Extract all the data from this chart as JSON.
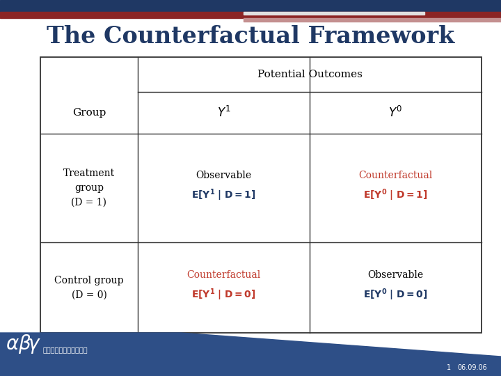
{
  "title": "The Counterfactual Framework",
  "title_color": "#1F3864",
  "title_fontsize": 24,
  "bg_color": "#FFFFFF",
  "top_bar_dark": "#1F3864",
  "top_bar_red": "#8B2020",
  "top_bar_light_red": "#C08080",
  "table": {
    "potential_outcomes_label": "Potential Outcomes",
    "group_label": "Group",
    "y1_label": "Y¹",
    "y0_label": "Y⁰",
    "rows": [
      {
        "group": "Treatment\ngroup\n(D = 1)",
        "y1_top": "Observable",
        "y1_formula": "E[Y¹ | D = 1]",
        "y1_top_color": "#000000",
        "y1_formula_color": "#1F3864",
        "y0_top": "Counterfactual",
        "y0_formula": "E[Y⁰ | D = 1]",
        "y0_top_color": "#C0392B",
        "y0_formula_color": "#C0392B"
      },
      {
        "group": "Control group\n(D = 0)",
        "y1_top": "Counterfactual",
        "y1_formula": "E[Y¹ | D = 0]",
        "y1_top_color": "#C0392B",
        "y1_formula_color": "#C0392B",
        "y0_top": "Observable",
        "y0_formula": "E[Y⁰ | D = 0]",
        "y0_top_color": "#000000",
        "y0_formula_color": "#1F3864"
      }
    ]
  },
  "footer_chinese": "資料庫研究與統計方法學",
  "footer_page": "1",
  "footer_date": "06.09.06",
  "footer_bg": "#2E4F87"
}
